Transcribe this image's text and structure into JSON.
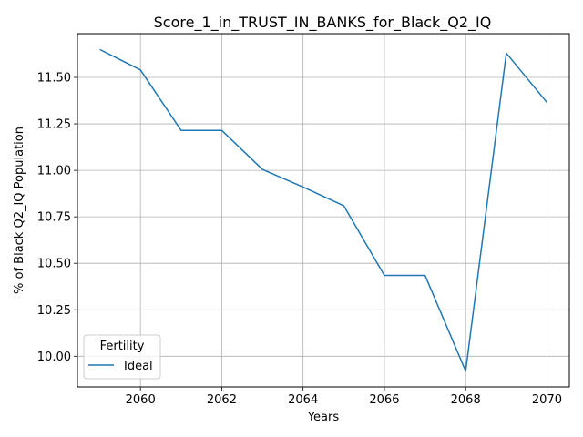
{
  "chart_data": {
    "type": "line",
    "title": "Score_1_in_TRUST_IN_BANKS_for_Black_Q2_IQ",
    "xlabel": "Years",
    "ylabel": "% of Black Q2_IQ Population",
    "x": [
      2059,
      2060,
      2061,
      2062,
      2063,
      2064,
      2065,
      2066,
      2067,
      2068,
      2069,
      2070
    ],
    "series": [
      {
        "name": "Ideal",
        "color": "#1f77b4",
        "values": [
          11.65,
          11.54,
          11.215,
          11.215,
          11.005,
          10.91,
          10.81,
          10.435,
          10.435,
          9.92,
          11.63,
          11.365
        ]
      }
    ],
    "xlim": [
      2058.45,
      2070.55
    ],
    "ylim": [
      9.835,
      11.735
    ],
    "xticks": [
      2060,
      2062,
      2064,
      2066,
      2068,
      2070
    ],
    "yticks": [
      10.0,
      10.25,
      10.5,
      10.75,
      11.0,
      11.25,
      11.5
    ],
    "xtick_labels": [
      "2060",
      "2062",
      "2064",
      "2066",
      "2068",
      "2070"
    ],
    "ytick_labels": [
      "10.00",
      "10.25",
      "10.50",
      "10.75",
      "11.00",
      "11.25",
      "11.50"
    ],
    "grid": true,
    "legend": {
      "title": "Fertility",
      "placement": "lower-left"
    }
  }
}
